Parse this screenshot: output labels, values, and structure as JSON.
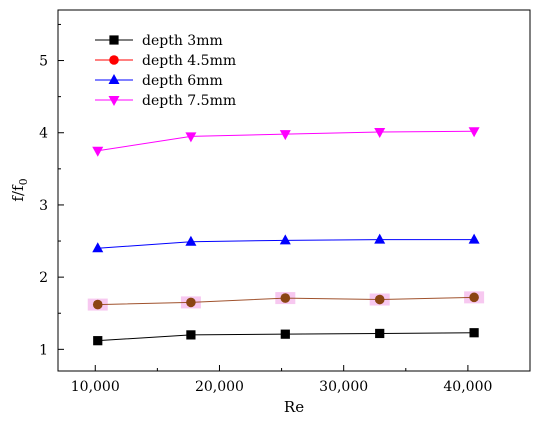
{
  "chart_data": {
    "type": "line",
    "xlabel": "Re",
    "ylabel_main": "f/f",
    "ylabel_sub": "0",
    "x": [
      10200,
      17700,
      25300,
      32900,
      40500
    ],
    "xlim": [
      7000,
      45000
    ],
    "ylim": [
      0.7,
      5.7
    ],
    "xticks": [
      10000,
      20000,
      30000,
      40000
    ],
    "xtick_labels": [
      "10,000",
      "20,000",
      "30,000",
      "40,000"
    ],
    "yticks": [
      1,
      2,
      3,
      4,
      5
    ],
    "ytick_labels": [
      "1",
      "2",
      "3",
      "4",
      "5"
    ],
    "grid": false,
    "legend_position": "top-left",
    "series": [
      {
        "name": "depth 3mm",
        "color": "#000000",
        "marker": "square",
        "values": [
          1.12,
          1.2,
          1.21,
          1.22,
          1.23
        ]
      },
      {
        "name": "depth 4.5mm",
        "color": "#ff0000",
        "line_color": "#a0522d",
        "fill_color": "#8b4513",
        "highlight": "#f7c8f0",
        "marker": "circle",
        "values": [
          1.62,
          1.65,
          1.71,
          1.69,
          1.72
        ]
      },
      {
        "name": "depth 6mm",
        "color": "#0000ff",
        "marker": "triangle-up",
        "values": [
          2.4,
          2.49,
          2.51,
          2.52,
          2.52
        ]
      },
      {
        "name": "depth 7.5mm",
        "color": "#ff00ff",
        "marker": "triangle-down",
        "values": [
          3.75,
          3.95,
          3.98,
          4.01,
          4.02
        ]
      }
    ]
  }
}
